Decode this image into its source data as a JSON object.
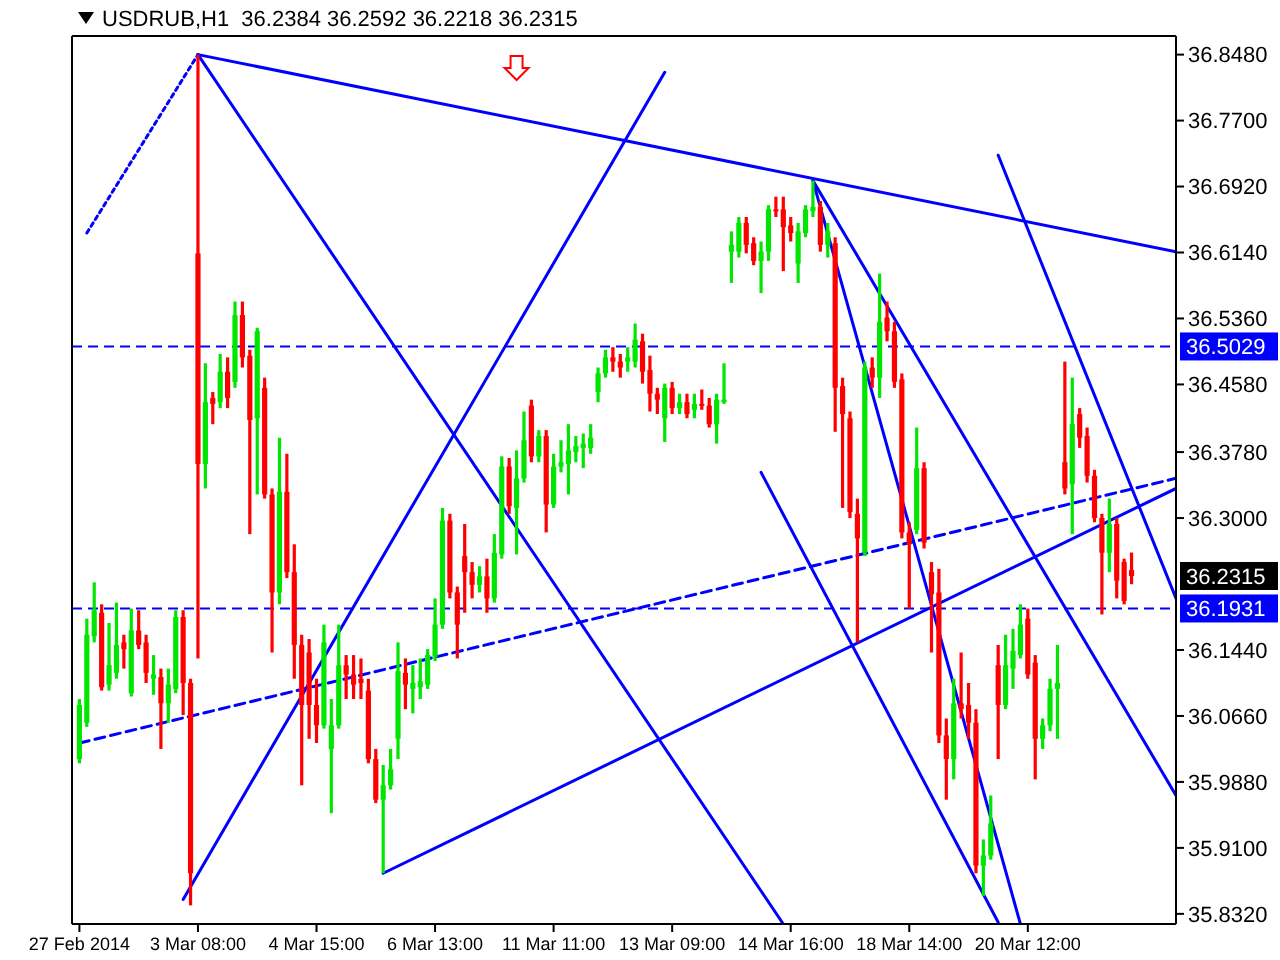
{
  "chart_data": {
    "type": "candlestick",
    "title": "USDRUB,H1  36.2384 36.2592 36.2218 36.2315",
    "categories": [
      "27 Feb 2014",
      null,
      null,
      null,
      null,
      null,
      null,
      null,
      null,
      null,
      null,
      null,
      null,
      null,
      null,
      null,
      "3 Mar 08:00",
      null,
      null,
      null,
      null,
      null,
      null,
      null,
      null,
      null,
      null,
      null,
      null,
      null,
      null,
      null,
      "4 Mar 15:00",
      null,
      null,
      null,
      null,
      null,
      null,
      null,
      null,
      null,
      null,
      null,
      null,
      null,
      null,
      null,
      "6 Mar 13:00",
      null,
      null,
      null,
      null,
      null,
      null,
      null,
      null,
      null,
      null,
      null,
      null,
      null,
      null,
      null,
      "11 Mar 11:00",
      null,
      null,
      null,
      null,
      null,
      null,
      null,
      null,
      null,
      null,
      null,
      null,
      null,
      null,
      null,
      "13 Mar 09:00",
      null,
      null,
      null,
      null,
      null,
      null,
      null,
      null,
      null,
      null,
      null,
      null,
      null,
      null,
      null,
      "14 Mar 16:00",
      null,
      null,
      null,
      null,
      null,
      null,
      null,
      null,
      null,
      null,
      null,
      null,
      null,
      null,
      null,
      "18 Mar 14:00",
      null,
      null,
      null,
      null,
      null,
      null,
      null,
      null,
      null,
      null,
      null,
      null,
      null,
      null,
      null,
      "20 Mar 12:00",
      null,
      null,
      null,
      null,
      null,
      null,
      null,
      null,
      null,
      null,
      null,
      null,
      null,
      null,
      null,
      null,
      null,
      null,
      null,
      null
    ],
    "ohlc": [
      [
        36.015,
        36.086,
        36.01,
        36.079
      ],
      [
        36.058,
        36.181,
        36.053,
        36.162
      ],
      [
        36.16,
        36.224,
        36.153,
        36.191
      ],
      [
        36.188,
        36.198,
        36.096,
        36.1
      ],
      [
        36.103,
        36.176,
        36.096,
        36.126
      ],
      [
        36.117,
        36.2,
        36.11,
        36.15
      ],
      [
        36.153,
        36.162,
        36.122,
        36.145
      ],
      [
        36.093,
        36.193,
        36.089,
        36.167
      ],
      [
        36.167,
        36.191,
        36.145,
        36.15
      ],
      [
        36.153,
        36.162,
        36.105,
        36.117
      ],
      [
        36.11,
        36.138,
        36.091,
        36.115
      ],
      [
        36.112,
        36.122,
        36.027,
        36.081
      ],
      [
        36.081,
        36.122,
        36.058,
        36.103
      ],
      [
        36.098,
        36.191,
        36.093,
        36.183
      ],
      [
        36.183,
        36.191,
        36.067,
        36.105
      ],
      [
        36.105,
        36.11,
        35.842,
        35.88
      ],
      [
        36.613,
        36.848,
        36.134,
        36.364
      ],
      [
        36.364,
        36.483,
        36.335,
        36.437
      ],
      [
        36.442,
        36.449,
        36.411,
        36.435
      ],
      [
        36.437,
        36.494,
        36.43,
        36.473
      ],
      [
        36.473,
        36.49,
        36.43,
        36.442
      ],
      [
        36.461,
        36.556,
        36.454,
        36.54
      ],
      [
        36.54,
        36.556,
        36.478,
        36.49
      ],
      [
        36.492,
        36.499,
        36.281,
        36.416
      ],
      [
        36.418,
        36.525,
        36.328,
        36.521
      ],
      [
        36.454,
        36.466,
        36.323,
        36.328
      ],
      [
        36.328,
        36.335,
        36.141,
        36.212
      ],
      [
        36.212,
        36.395,
        36.198,
        36.331
      ],
      [
        36.331,
        36.376,
        36.229,
        36.236
      ],
      [
        36.236,
        36.269,
        36.11,
        36.15
      ],
      [
        36.15,
        36.162,
        35.984,
        36.079
      ],
      [
        36.141,
        36.157,
        36.039,
        36.079
      ],
      [
        36.079,
        36.11,
        36.034,
        36.055
      ],
      [
        36.055,
        36.174,
        36.051,
        36.153
      ],
      [
        36.027,
        36.086,
        35.951,
        36.055
      ],
      [
        36.055,
        36.174,
        36.051,
        36.126
      ],
      [
        36.126,
        36.138,
        36.086,
        36.115
      ],
      [
        36.115,
        36.138,
        36.086,
        36.103
      ],
      [
        36.11,
        36.134,
        36.086,
        36.105
      ],
      [
        36.096,
        36.11,
        36.01,
        36.015
      ],
      [
        36.015,
        36.027,
        35.963,
        35.967
      ],
      [
        35.967,
        36.008,
        35.88,
        35.984
      ],
      [
        35.984,
        36.027,
        35.979,
        36.003
      ],
      [
        36.039,
        36.153,
        36.015,
        36.119
      ],
      [
        36.117,
        36.134,
        36.074,
        36.103
      ],
      [
        36.098,
        36.126,
        36.069,
        36.105
      ],
      [
        36.1,
        36.134,
        36.086,
        36.107
      ],
      [
        36.103,
        36.145,
        36.098,
        36.138
      ],
      [
        36.136,
        36.205,
        36.131,
        36.174
      ],
      [
        36.174,
        36.312,
        36.169,
        36.297
      ],
      [
        36.297,
        36.305,
        36.205,
        36.212
      ],
      [
        36.212,
        36.219,
        36.134,
        36.174
      ],
      [
        36.255,
        36.293,
        36.188,
        36.236
      ],
      [
        36.236,
        36.248,
        36.205,
        36.221
      ],
      [
        36.221,
        36.243,
        36.212,
        36.231
      ],
      [
        36.231,
        36.252,
        36.188,
        36.205
      ],
      [
        36.205,
        36.281,
        36.2,
        36.259
      ],
      [
        36.257,
        36.373,
        36.252,
        36.361
      ],
      [
        36.361,
        36.371,
        36.305,
        36.314
      ],
      [
        36.312,
        36.38,
        36.257,
        36.347
      ],
      [
        36.347,
        36.426,
        36.342,
        36.392
      ],
      [
        36.433,
        36.44,
        36.366,
        36.373
      ],
      [
        36.373,
        36.404,
        36.366,
        36.397
      ],
      [
        36.397,
        36.404,
        36.283,
        36.316
      ],
      [
        36.316,
        36.376,
        36.312,
        36.361
      ],
      [
        36.361,
        36.392,
        36.354,
        36.366
      ],
      [
        36.364,
        36.411,
        36.328,
        36.38
      ],
      [
        36.378,
        36.397,
        36.366,
        36.385
      ],
      [
        36.383,
        36.4,
        36.359,
        36.388
      ],
      [
        36.383,
        36.411,
        36.376,
        36.395
      ],
      [
        36.449,
        36.478,
        36.437,
        36.471
      ],
      [
        36.471,
        36.499,
        36.466,
        36.49
      ],
      [
        36.49,
        36.502,
        36.473,
        36.485
      ],
      [
        36.485,
        36.494,
        36.466,
        36.478
      ],
      [
        36.485,
        36.502,
        36.473,
        36.49
      ],
      [
        36.485,
        36.53,
        36.478,
        36.511
      ],
      [
        36.509,
        36.518,
        36.459,
        36.473
      ],
      [
        36.475,
        36.492,
        36.426,
        36.447
      ],
      [
        36.447,
        36.454,
        36.423,
        36.44
      ],
      [
        36.418,
        36.459,
        36.39,
        36.454
      ],
      [
        36.454,
        36.461,
        36.423,
        36.43
      ],
      [
        36.43,
        36.447,
        36.423,
        36.437
      ],
      [
        36.437,
        36.447,
        36.418,
        36.423
      ],
      [
        36.428,
        36.447,
        36.418,
        36.435
      ],
      [
        36.435,
        36.452,
        36.428,
        36.433
      ],
      [
        36.433,
        36.442,
        36.407,
        36.411
      ],
      [
        36.411,
        36.447,
        36.388,
        36.44
      ],
      [
        36.437,
        36.483,
        36.435,
        36.44
      ],
      [
        36.615,
        36.639,
        36.578,
        36.623
      ],
      [
        36.615,
        36.656,
        36.608,
        36.649
      ],
      [
        36.649,
        36.656,
        36.613,
        36.623
      ],
      [
        36.625,
        36.632,
        36.599,
        36.604
      ],
      [
        36.604,
        36.627,
        36.566,
        36.615
      ],
      [
        36.615,
        36.67,
        36.604,
        36.665
      ],
      [
        36.665,
        36.68,
        36.656,
        36.663
      ],
      [
        36.665,
        36.68,
        36.592,
        36.644
      ],
      [
        36.646,
        36.656,
        36.627,
        36.637
      ],
      [
        36.601,
        36.649,
        36.578,
        36.639
      ],
      [
        36.637,
        36.67,
        36.632,
        36.665
      ],
      [
        36.663,
        36.699,
        36.656,
        36.668
      ],
      [
        36.668,
        36.675,
        36.615,
        36.623
      ],
      [
        36.623,
        36.649,
        36.608,
        36.639
      ],
      [
        36.625,
        36.632,
        36.402,
        36.454
      ],
      [
        36.456,
        36.466,
        36.312,
        36.423
      ],
      [
        36.418,
        36.426,
        36.3,
        36.307
      ],
      [
        36.305,
        36.323,
        36.153,
        36.276
      ],
      [
        36.259,
        36.485,
        36.255,
        36.478
      ],
      [
        36.478,
        36.49,
        36.454,
        36.466
      ],
      [
        36.466,
        36.589,
        36.442,
        36.532
      ],
      [
        36.537,
        36.556,
        36.509,
        36.521
      ],
      [
        36.521,
        36.532,
        36.454,
        36.461
      ],
      [
        36.464,
        36.471,
        36.276,
        36.283
      ],
      [
        36.283,
        36.295,
        36.193,
        36.269
      ],
      [
        36.286,
        36.407,
        36.281,
        36.359
      ],
      [
        36.359,
        36.366,
        36.264,
        36.271
      ],
      [
        36.236,
        36.248,
        36.141,
        36.21
      ],
      [
        36.212,
        36.24,
        36.034,
        36.043
      ],
      [
        36.043,
        36.063,
        35.967,
        36.015
      ],
      [
        36.015,
        36.11,
        35.991,
        36.081
      ],
      [
        36.081,
        36.141,
        36.063,
        36.074
      ],
      [
        36.079,
        36.105,
        36.039,
        36.058
      ],
      [
        36.058,
        36.074,
        35.88,
        35.889
      ],
      [
        35.889,
        35.92,
        35.853,
        35.901
      ],
      [
        35.901,
        35.972,
        35.896,
        35.939
      ],
      [
        36.126,
        36.15,
        36.015,
        36.079
      ],
      [
        36.079,
        36.162,
        36.074,
        36.126
      ],
      [
        36.122,
        36.169,
        36.098,
        36.143
      ],
      [
        36.138,
        36.198,
        36.134,
        36.174
      ],
      [
        36.181,
        36.193,
        36.11,
        36.115
      ],
      [
        36.129,
        36.138,
        35.991,
        36.039
      ],
      [
        36.039,
        36.063,
        36.027,
        36.055
      ],
      [
        36.055,
        36.11,
        36.048,
        36.098
      ],
      [
        36.098,
        36.15,
        36.039,
        36.105
      ],
      [
        36.366,
        36.485,
        36.328,
        36.335
      ],
      [
        36.34,
        36.466,
        36.281,
        36.411
      ],
      [
        36.423,
        36.43,
        36.383,
        36.395
      ],
      [
        36.397,
        36.407,
        36.342,
        36.35
      ],
      [
        36.35,
        36.357,
        36.295,
        36.3
      ],
      [
        36.3,
        36.305,
        36.186,
        36.259
      ],
      [
        36.259,
        36.323,
        36.236,
        36.293
      ],
      [
        36.293,
        36.3,
        36.205,
        36.226
      ],
      [
        36.248,
        36.252,
        36.198,
        36.202
      ],
      [
        36.2384,
        36.2592,
        36.2218,
        36.2315
      ],
      null,
      null,
      null,
      null,
      null,
      null
    ],
    "series": [
      {
        "type": "line",
        "color": "#0000ff",
        "values": [
          null,
          null,
          null,
          null,
          null,
          null,
          null,
          null,
          null,
          null,
          null,
          null,
          null,
          null,
          null,
          null,
          36.848,
          null,
          null,
          null,
          null,
          null,
          null,
          null,
          null,
          null,
          null,
          null,
          null,
          null,
          null,
          null,
          null,
          null,
          null,
          null,
          null,
          null,
          null,
          null,
          null,
          null,
          null,
          null,
          null,
          null,
          null,
          null,
          null,
          null,
          null,
          null,
          null,
          null,
          null,
          null,
          null,
          null,
          null,
          null,
          null,
          null,
          null,
          null,
          null,
          null,
          null,
          null,
          null,
          null,
          null,
          null,
          null,
          null,
          null,
          null,
          null,
          null,
          null,
          null,
          null,
          null,
          null,
          null,
          null,
          null,
          null,
          null,
          null,
          null,
          null,
          null,
          null,
          null,
          null,
          null,
          null,
          null,
          null,
          null,
          null,
          null,
          null,
          null,
          null,
          null,
          null,
          null,
          null,
          null,
          null,
          null,
          null,
          null,
          null,
          null,
          null,
          null,
          null,
          null,
          null,
          null,
          null,
          null,
          null,
          null,
          null,
          null,
          null,
          null,
          null,
          null,
          null,
          null,
          null,
          null,
          null,
          null,
          null,
          null,
          null,
          null,
          null,
          null,
          null,
          null,
          null,
          null,
          36.615
        ]
      },
      {
        "type": "line",
        "color": "#0000ff",
        "values": [
          null,
          null,
          null,
          null,
          null,
          null,
          null,
          null,
          null,
          null,
          null,
          null,
          null,
          null,
          null,
          null,
          null,
          null,
          null,
          null,
          null,
          null,
          null,
          null,
          null,
          null,
          null,
          null,
          null,
          null,
          null,
          null,
          null,
          null,
          null,
          null,
          null,
          null,
          null,
          null,
          null,
          35.88,
          null,
          null,
          null,
          null,
          null,
          null,
          null,
          null,
          null,
          null,
          null,
          null,
          null,
          null,
          null,
          null,
          null,
          null,
          null,
          null,
          null,
          null,
          null,
          null,
          null,
          null,
          null,
          null,
          null,
          null,
          null,
          null,
          null,
          null,
          null,
          null,
          null,
          null,
          null,
          null,
          null,
          null,
          null,
          null,
          null,
          null,
          null,
          null,
          null,
          null,
          null,
          null,
          null,
          null,
          null,
          null,
          null,
          null,
          null,
          null,
          null,
          null,
          null,
          null,
          null,
          null,
          null,
          null,
          null,
          null,
          null,
          null,
          null,
          null,
          null,
          null,
          null,
          null,
          null,
          null,
          null,
          null,
          null,
          null,
          null,
          null,
          null,
          null,
          null,
          null,
          null,
          null,
          null,
          null,
          null,
          null,
          null,
          null,
          null,
          null,
          null,
          null,
          null,
          null,
          null,
          null,
          36.335
        ]
      },
      {
        "type": "line",
        "color": "#0000ff",
        "values": [
          null,
          null,
          null,
          null,
          null,
          null,
          null,
          null,
          null,
          null,
          null,
          null,
          null,
          null,
          null,
          null,
          null,
          null,
          null,
          null,
          null,
          null,
          null,
          null,
          null,
          null,
          null,
          null,
          null,
          null,
          null,
          null,
          null,
          null,
          null,
          null,
          null,
          null,
          null,
          null,
          null,
          null,
          null,
          null,
          null,
          null,
          null,
          null,
          null,
          null,
          null,
          null,
          null,
          null,
          null,
          null,
          null,
          null,
          null,
          null,
          null,
          null,
          null,
          null,
          null,
          null,
          null,
          null,
          null,
          null,
          null,
          null,
          null,
          null,
          null,
          null,
          null,
          null,
          null,
          null,
          null,
          null,
          null,
          null,
          null,
          null,
          null,
          null,
          null,
          null,
          null,
          null,
          null,
          null,
          null,
          null,
          null,
          null,
          null,
          36.699,
          null,
          null,
          null,
          null,
          null,
          null,
          null,
          null,
          null,
          null,
          null,
          null,
          null,
          null,
          null,
          null,
          null,
          null,
          null,
          null,
          null,
          null,
          null,
          null,
          null,
          null,
          null,
          35.82,
          null,
          null,
          null,
          null,
          null,
          null,
          null,
          null,
          null,
          null,
          null,
          null,
          null,
          null,
          null,
          null,
          null,
          null,
          null,
          null,
          null
        ]
      },
      {
        "type": "line",
        "color": "#0000ff",
        "values": [
          null,
          null,
          null,
          null,
          null,
          null,
          null,
          null,
          null,
          null,
          null,
          null,
          null,
          null,
          null,
          null,
          36.848,
          null,
          null,
          null,
          null,
          null,
          null,
          null,
          null,
          null,
          null,
          null,
          null,
          null,
          null,
          null,
          null,
          null,
          null,
          null,
          null,
          null,
          null,
          null,
          null,
          null,
          null,
          null,
          null,
          null,
          null,
          null,
          null,
          null,
          null,
          null,
          null,
          null,
          null,
          null,
          null,
          null,
          null,
          null,
          null,
          null,
          null,
          null,
          null,
          null,
          null,
          null,
          null,
          null,
          null,
          null,
          null,
          null,
          null,
          null,
          null,
          null,
          null,
          null,
          null,
          null,
          null,
          null,
          null,
          null,
          null,
          null,
          null,
          null,
          null,
          null,
          null,
          null,
          null,
          35.82,
          null,
          null,
          null,
          null,
          null,
          null,
          null,
          null,
          null,
          null,
          null,
          null,
          null,
          null,
          null,
          null,
          null,
          null,
          null,
          null,
          null,
          null,
          null,
          null,
          null,
          null,
          null,
          null,
          null,
          null,
          null,
          null,
          null,
          null,
          null,
          null,
          null,
          null,
          null,
          null,
          null,
          null,
          null,
          null,
          null,
          null,
          null,
          null,
          null,
          null,
          null,
          null,
          null
        ]
      },
      {
        "type": "line",
        "color": "#0000ff",
        "values": [
          null,
          null,
          null,
          null,
          null,
          null,
          null,
          null,
          null,
          null,
          null,
          null,
          null,
          null,
          35.849,
          null,
          null,
          null,
          null,
          null,
          null,
          null,
          null,
          null,
          null,
          null,
          null,
          null,
          null,
          null,
          null,
          null,
          null,
          null,
          null,
          null,
          null,
          null,
          null,
          null,
          null,
          null,
          null,
          null,
          null,
          null,
          null,
          null,
          null,
          null,
          null,
          null,
          null,
          null,
          null,
          null,
          null,
          null,
          null,
          null,
          null,
          null,
          null,
          null,
          null,
          null,
          null,
          null,
          null,
          null,
          null,
          null,
          null,
          null,
          null,
          null,
          null,
          null,
          null,
          36.827,
          null,
          null,
          null,
          null,
          null,
          null,
          null,
          null,
          null,
          null,
          null,
          null,
          null,
          null,
          null,
          null,
          null,
          null,
          null,
          null,
          null,
          null,
          null,
          null,
          null,
          null,
          null,
          null,
          null,
          null,
          null,
          null,
          null,
          null,
          null,
          null,
          null,
          null,
          null,
          null,
          null,
          null,
          null,
          null,
          null,
          null,
          null,
          null,
          null,
          null,
          null,
          null,
          null,
          null,
          null,
          null,
          null,
          null,
          null,
          null,
          null,
          null,
          null,
          null,
          null,
          null,
          null,
          null,
          null
        ]
      },
      {
        "type": "line",
        "color": "#0000ff",
        "values": [
          null,
          null,
          null,
          null,
          null,
          null,
          null,
          null,
          null,
          null,
          null,
          null,
          null,
          null,
          null,
          null,
          null,
          null,
          null,
          null,
          null,
          null,
          null,
          null,
          null,
          null,
          null,
          null,
          null,
          null,
          null,
          null,
          null,
          null,
          null,
          null,
          null,
          null,
          null,
          null,
          null,
          null,
          null,
          null,
          null,
          null,
          null,
          null,
          null,
          null,
          null,
          null,
          null,
          null,
          null,
          null,
          null,
          null,
          null,
          null,
          null,
          null,
          null,
          null,
          null,
          null,
          null,
          null,
          null,
          null,
          null,
          null,
          null,
          null,
          null,
          null,
          null,
          null,
          null,
          null,
          null,
          null,
          null,
          null,
          null,
          null,
          null,
          null,
          null,
          null,
          null,
          null,
          null,
          null,
          null,
          null,
          null,
          null,
          null,
          36.699,
          null,
          null,
          null,
          null,
          null,
          null,
          null,
          null,
          null,
          null,
          null,
          null,
          null,
          null,
          null,
          null,
          null,
          null,
          null,
          null,
          null,
          null,
          null,
          null,
          null,
          null,
          null,
          null,
          null,
          null,
          null,
          null,
          null,
          null,
          null,
          null,
          null,
          null,
          null,
          null,
          null,
          null,
          null,
          null,
          null,
          null,
          null,
          null,
          35.972
        ]
      },
      {
        "type": "line",
        "color": "#0000ff",
        "values": [
          null,
          null,
          null,
          null,
          null,
          null,
          null,
          null,
          null,
          null,
          null,
          null,
          null,
          null,
          null,
          null,
          null,
          null,
          null,
          null,
          null,
          null,
          null,
          null,
          null,
          null,
          null,
          null,
          null,
          null,
          null,
          null,
          null,
          null,
          null,
          null,
          null,
          null,
          null,
          null,
          null,
          null,
          null,
          null,
          null,
          null,
          null,
          null,
          null,
          null,
          null,
          null,
          null,
          null,
          null,
          null,
          null,
          null,
          null,
          null,
          null,
          null,
          null,
          null,
          null,
          null,
          null,
          null,
          null,
          null,
          null,
          null,
          null,
          null,
          null,
          null,
          null,
          null,
          null,
          null,
          null,
          null,
          null,
          null,
          null,
          null,
          null,
          null,
          null,
          null,
          null,
          null,
          null,
          null,
          null,
          null,
          null,
          null,
          null,
          null,
          null,
          null,
          null,
          null,
          null,
          null,
          null,
          null,
          null,
          null,
          null,
          null,
          null,
          null,
          null,
          null,
          null,
          null,
          null,
          null,
          null,
          null,
          null,
          null,
          36.729,
          null,
          null,
          null,
          null,
          null,
          null,
          null,
          null,
          null,
          null,
          null,
          null,
          null,
          null,
          null,
          null,
          null,
          null,
          null,
          null,
          null,
          null,
          null,
          36.205
        ]
      },
      {
        "type": "line",
        "color": "#0000ff",
        "values": [
          null,
          null,
          null,
          null,
          null,
          null,
          null,
          null,
          null,
          null,
          null,
          null,
          null,
          null,
          null,
          null,
          null,
          null,
          null,
          null,
          null,
          null,
          null,
          null,
          null,
          null,
          null,
          null,
          null,
          null,
          null,
          null,
          null,
          null,
          null,
          null,
          null,
          null,
          null,
          null,
          null,
          null,
          null,
          null,
          null,
          null,
          null,
          null,
          null,
          null,
          null,
          null,
          null,
          null,
          null,
          null,
          null,
          null,
          null,
          null,
          null,
          null,
          null,
          null,
          null,
          null,
          null,
          null,
          null,
          null,
          null,
          null,
          null,
          null,
          null,
          null,
          null,
          null,
          null,
          null,
          null,
          null,
          null,
          null,
          null,
          null,
          null,
          null,
          null,
          null,
          null,
          null,
          36.354,
          null,
          null,
          null,
          null,
          null,
          null,
          null,
          null,
          null,
          null,
          null,
          null,
          null,
          null,
          null,
          null,
          null,
          null,
          null,
          null,
          null,
          null,
          null,
          null,
          null,
          null,
          null,
          null,
          null,
          null,
          null,
          35.822,
          null,
          null,
          null,
          null,
          null,
          null,
          null,
          null,
          null,
          null,
          null,
          null,
          null,
          null,
          null,
          null,
          null,
          null,
          null,
          null,
          null,
          null,
          null,
          null
        ]
      },
      {
        "type": "line",
        "color": "#0000ff",
        "line_style": "dashed",
        "values": [
          36.034,
          null,
          null,
          null,
          null,
          null,
          null,
          null,
          null,
          null,
          null,
          null,
          null,
          null,
          null,
          null,
          null,
          null,
          null,
          null,
          null,
          null,
          null,
          null,
          null,
          null,
          null,
          null,
          null,
          null,
          null,
          null,
          null,
          null,
          null,
          null,
          null,
          null,
          null,
          null,
          null,
          null,
          null,
          null,
          null,
          null,
          null,
          null,
          null,
          null,
          null,
          null,
          null,
          null,
          null,
          null,
          null,
          null,
          null,
          null,
          null,
          null,
          null,
          null,
          null,
          null,
          null,
          null,
          null,
          null,
          null,
          null,
          null,
          null,
          null,
          null,
          null,
          null,
          null,
          null,
          null,
          null,
          null,
          null,
          null,
          null,
          null,
          null,
          null,
          null,
          null,
          null,
          null,
          null,
          null,
          null,
          null,
          null,
          null,
          null,
          null,
          null,
          null,
          null,
          null,
          null,
          null,
          null,
          null,
          null,
          null,
          null,
          null,
          null,
          null,
          null,
          null,
          null,
          null,
          null,
          null,
          null,
          null,
          null,
          null,
          null,
          null,
          null,
          null,
          null,
          null,
          null,
          null,
          null,
          null,
          null,
          null,
          null,
          null,
          null,
          null,
          null,
          null,
          null,
          null,
          null,
          null,
          null,
          36.347
        ]
      },
      {
        "type": "line",
        "color": "#0000ff",
        "line_style": "dotted",
        "values": [
          null,
          36.637,
          null,
          null,
          null,
          null,
          null,
          null,
          null,
          null,
          null,
          null,
          null,
          null,
          null,
          null,
          36.848,
          null,
          null,
          null,
          null,
          null,
          null,
          null,
          null,
          null,
          null,
          null,
          null,
          null,
          null,
          null,
          null,
          null,
          null,
          null,
          null,
          null,
          null,
          null,
          null,
          null,
          null,
          null,
          null,
          null,
          null,
          null,
          null,
          null,
          null,
          null,
          null,
          null,
          null,
          null,
          null,
          null,
          null,
          null,
          null,
          null,
          null,
          null,
          null,
          null,
          null,
          null,
          null,
          null,
          null,
          null,
          null,
          null,
          null,
          null,
          null,
          null,
          null,
          null,
          null,
          null,
          null,
          null,
          null,
          null,
          null,
          null,
          null,
          null,
          null,
          null,
          null,
          null,
          null,
          null,
          null,
          null,
          null,
          null,
          null,
          null,
          null,
          null,
          null,
          null,
          null,
          null,
          null,
          null,
          null,
          null,
          null,
          null,
          null,
          null,
          null,
          null,
          null,
          null,
          null,
          null,
          null,
          null,
          null,
          null,
          null,
          null,
          null,
          null,
          null,
          null,
          null,
          null,
          null,
          null,
          null,
          null,
          null,
          null,
          null,
          null,
          null,
          null,
          null,
          null,
          null,
          null,
          null
        ]
      }
    ],
    "ref_lines": [
      {
        "axis": "y",
        "value": 36.5029,
        "label": "36.5029",
        "color": "#0000ff",
        "line_style": "dashed"
      },
      {
        "axis": "y",
        "value": 36.1931,
        "label": "36.1931",
        "color": "#0000ff",
        "line_style": "dashed"
      }
    ],
    "annotations": [
      "36.2315"
    ],
    "ylim": [
      35.82,
      36.87
    ],
    "yticks": [
      {
        "value": 35.832,
        "label": "35.8320"
      },
      {
        "value": 35.91,
        "label": "35.9100"
      },
      {
        "value": 35.988,
        "label": "35.9880"
      },
      {
        "value": 36.066,
        "label": "36.0660"
      },
      {
        "value": 36.144,
        "label": "36.1440"
      },
      {
        "value": 36.3,
        "label": "36.3000"
      },
      {
        "value": 36.378,
        "label": "36.3780"
      },
      {
        "value": 36.458,
        "label": "36.4580"
      },
      {
        "value": 36.536,
        "label": "36.5360"
      },
      {
        "value": 36.614,
        "label": "36.6140"
      },
      {
        "value": 36.692,
        "label": "36.6920"
      },
      {
        "value": 36.77,
        "label": "36.7700"
      },
      {
        "value": 36.848,
        "label": "36.8480"
      }
    ],
    "grid": false
  }
}
